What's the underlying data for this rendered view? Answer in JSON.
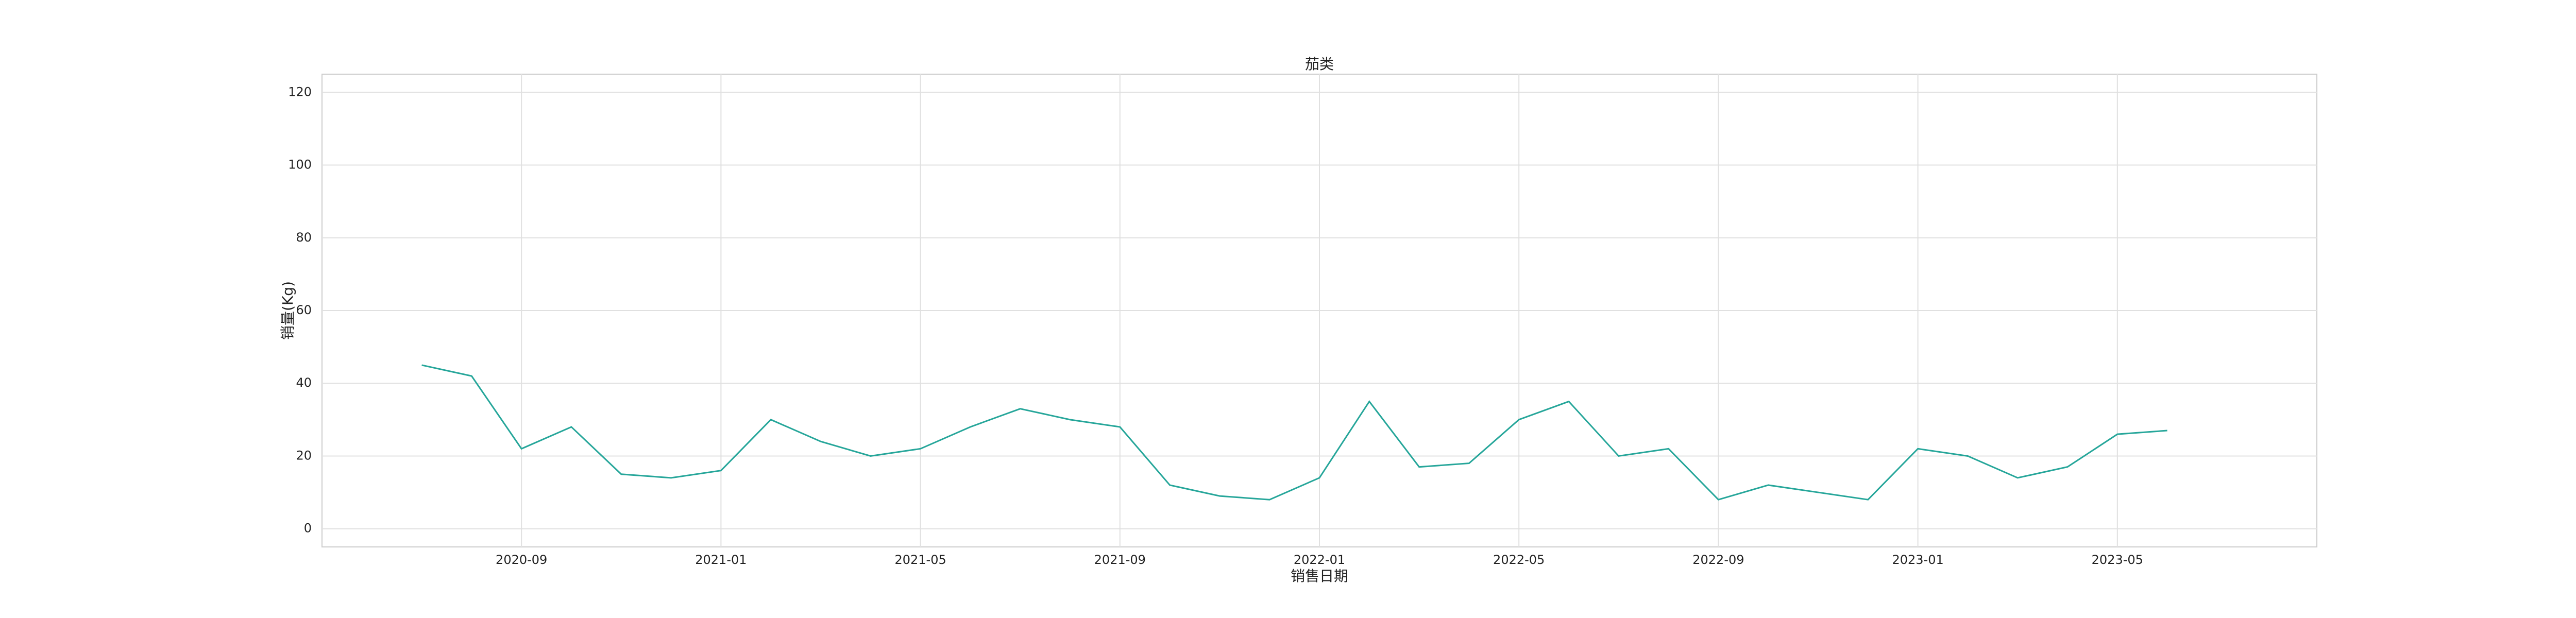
{
  "chart_data": {
    "type": "line",
    "title": "茄类",
    "x_label": "销售日期",
    "y_label": "销量(Kg)",
    "x": [
      "2020-07",
      "2020-08",
      "2020-09",
      "2020-10",
      "2020-11",
      "2020-12",
      "2021-01",
      "2021-02",
      "2021-03",
      "2021-04",
      "2021-05",
      "2021-06",
      "2021-07",
      "2021-08",
      "2021-09",
      "2021-10",
      "2021-11",
      "2021-12",
      "2022-01",
      "2022-02",
      "2022-03",
      "2022-04",
      "2022-05",
      "2022-06",
      "2022-07",
      "2022-08",
      "2022-09",
      "2022-10",
      "2022-11",
      "2022-12",
      "2023-01",
      "2023-02",
      "2023-03",
      "2023-04",
      "2023-05",
      "2023-06"
    ],
    "series": [
      {
        "name": "茄类",
        "color": "#26a69a",
        "values": [
          45,
          42,
          22,
          28,
          15,
          14,
          16,
          30,
          24,
          20,
          22,
          28,
          33,
          30,
          28,
          12,
          9,
          8,
          14,
          35,
          17,
          18,
          30,
          35,
          20,
          22,
          8,
          12,
          10,
          8,
          22,
          20,
          14,
          17,
          26,
          27
        ]
      }
    ],
    "xlim": [
      "2020-05",
      "2023-09"
    ],
    "xticks": [
      "2020-09",
      "2021-01",
      "2021-05",
      "2021-09",
      "2022-01",
      "2022-05",
      "2022-09",
      "2023-01",
      "2023-05"
    ],
    "ylim": [
      -5,
      125
    ],
    "yticks": [
      0,
      20,
      40,
      60,
      80,
      100,
      120
    ],
    "grid": true
  }
}
